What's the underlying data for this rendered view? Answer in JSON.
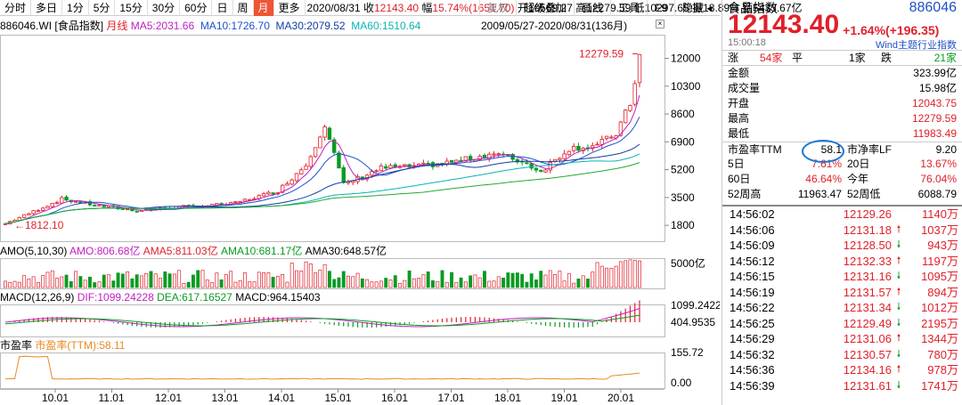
{
  "toolbar": {
    "periods": [
      "分时",
      "多日",
      "1分",
      "5分",
      "15分",
      "30分",
      "60分",
      "日",
      "周",
      "月",
      "更多"
    ],
    "active_period": "月",
    "summary": {
      "date": "2020/08/31",
      "close_label": "收",
      "close": "12143.40",
      "range_label": "幅",
      "range": "15.74%(1651.70)",
      "open_label": "开",
      "open": "10569.27",
      "high_label": "高",
      "high": "12279.59",
      "low_label": "低",
      "low": "10297.65",
      "amp_label": "振",
      "amp": "18.89%",
      "amount_label": "额",
      "amount": "5433.67亿"
    },
    "right_tabs": [
      "复权",
      "超级叠加",
      "画线",
      "工具",
      "F9",
      "隐藏"
    ]
  },
  "main": {
    "code_name": "886046.WI [食品指数]",
    "ma_label": "月线",
    "ma5": "MA5:2031.66",
    "ma10": "MA10:1726.70",
    "ma30": "MA30:2079.52",
    "ma60": "MA60:1510.64",
    "range_text": "2009/05/27-2020/08/31(136月)",
    "high_marker": "12279.59",
    "low_marker": "1812.10",
    "y_ticks": [
      "12000",
      "10300",
      "8600",
      "6900",
      "5200",
      "3500",
      "1800"
    ]
  },
  "amo": {
    "label": "AMO(5,10,30)",
    "amo": "AMO:806.68亿",
    "ama5": "AMA5:811.03亿",
    "ama10": "AMA10:681.17亿",
    "ama30": "AMA30:648.57亿",
    "tick": "5000亿"
  },
  "macd": {
    "label": "MACD(12,26,9)",
    "dif": "DIF:1099.24228",
    "dea": "DEA:617.16527",
    "macd": "MACD:964.15403",
    "tick_top": "1099.2422",
    "tick_mid": "404.9535"
  },
  "pe": {
    "label": "市盈率",
    "series": "市盈率(TTM):58.11",
    "tick_top": "155.72",
    "tick_bottom": "0.00"
  },
  "x_ticks": [
    "10.01",
    "11.01",
    "12.01",
    "13.01",
    "14.01",
    "15.01",
    "16.01",
    "17.01",
    "18.01",
    "19.01",
    "20.01"
  ],
  "chart_data": {
    "type": "line",
    "title": "",
    "xlabel": "",
    "ylabel": "",
    "ylim": [
      1800,
      12300
    ],
    "categories": [
      "10.01",
      "11.01",
      "12.01",
      "13.01",
      "14.01",
      "15.01",
      "16.01",
      "17.01",
      "18.01",
      "19.01",
      "20.01"
    ],
    "series": [
      {
        "name": "",
        "values": [
          1900,
          3400,
          2900,
          3000,
          3200,
          5200,
          5300,
          5400,
          6000,
          6200,
          12143
        ]
      }
    ]
  },
  "side": {
    "name": "食品指数",
    "code": "886046",
    "price": "12143.40",
    "change": "+1.64%(+196.35)",
    "time": "15:00:18",
    "source": "Wind主题行业指数",
    "rise_label": "涨",
    "rise_count": "54家",
    "flat_label": "平",
    "flat_count": "1家",
    "fall_label": "跌",
    "fall_count": "21家",
    "stats": [
      {
        "k": "金额",
        "v": "323.99亿"
      },
      {
        "k": "成交量",
        "v": "15.98亿"
      },
      {
        "k": "开盘",
        "v": "12043.75"
      },
      {
        "k": "最高",
        "v": "12279.59"
      },
      {
        "k": "最低",
        "v": "11983.49"
      }
    ],
    "pe_label": "市盈率TTM",
    "pe_value": "58.1",
    "pb_label": "市净率LF",
    "pb_value": "9.20",
    "perf": [
      {
        "k1": "5日",
        "v1": "7.61%",
        "k2": "20日",
        "v2": "13.67%"
      },
      {
        "k1": "60日",
        "v1": "46.64%",
        "k2": "今年",
        "v2": "76.04%"
      },
      {
        "k1": "52周高",
        "v1": "11963.47",
        "k2": "52周低",
        "v2": "6088.79"
      }
    ],
    "trades": [
      {
        "t": "14:56:02",
        "p": "12129.26",
        "dir": "",
        "q": "1140万"
      },
      {
        "t": "14:56:06",
        "p": "12131.18",
        "dir": "up",
        "q": "1037万"
      },
      {
        "t": "14:56:09",
        "p": "12128.50",
        "dir": "down",
        "q": "943万"
      },
      {
        "t": "14:56:12",
        "p": "12132.33",
        "dir": "up",
        "q": "1197万"
      },
      {
        "t": "14:56:15",
        "p": "12131.16",
        "dir": "down",
        "q": "1095万"
      },
      {
        "t": "14:56:19",
        "p": "12131.57",
        "dir": "up",
        "q": "894万"
      },
      {
        "t": "14:56:22",
        "p": "12131.34",
        "dir": "down",
        "q": "1012万"
      },
      {
        "t": "14:56:25",
        "p": "12129.49",
        "dir": "down",
        "q": "2195万"
      },
      {
        "t": "14:56:29",
        "p": "12131.06",
        "dir": "up",
        "q": "1344万"
      },
      {
        "t": "14:56:32",
        "p": "12130.57",
        "dir": "down",
        "q": "780万"
      },
      {
        "t": "14:56:36",
        "p": "12134.16",
        "dir": "up",
        "q": "978万"
      },
      {
        "t": "14:56:39",
        "p": "12131.61",
        "dir": "down",
        "q": "1741万"
      }
    ]
  }
}
